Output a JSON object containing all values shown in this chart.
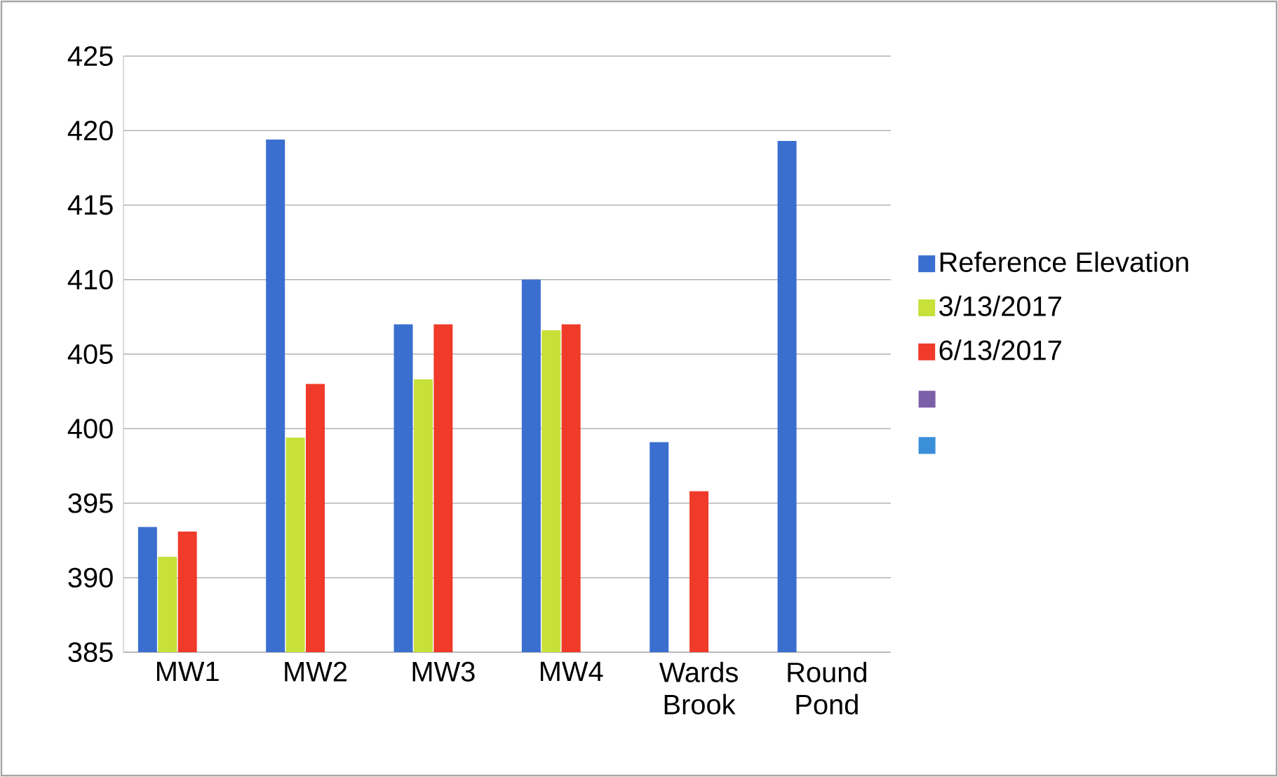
{
  "chart_data": {
    "type": "bar",
    "categories": [
      "MW1",
      "MW2",
      "MW3",
      "MW4",
      "Wards Brook",
      "Round Pond"
    ],
    "series": [
      {
        "name": "Reference Elevation",
        "color": "#3a6fd0",
        "values": [
          393.4,
          419.4,
          407.0,
          410.0,
          399.1,
          419.3
        ]
      },
      {
        "name": "3/13/2017",
        "color": "#c8e03a",
        "values": [
          391.4,
          399.4,
          403.3,
          406.6,
          null,
          null
        ]
      },
      {
        "name": "6/13/2017",
        "color": "#f03a2a",
        "values": [
          393.1,
          403.0,
          407.0,
          407.0,
          395.8,
          null
        ]
      },
      {
        "color": "#7b5fa8",
        "values": [
          null,
          null,
          null,
          null,
          null,
          null
        ]
      },
      {
        "color": "#3a8fd8",
        "values": [
          null,
          null,
          null,
          null,
          null,
          null
        ]
      }
    ],
    "ylim": [
      385,
      425
    ],
    "yticks": [
      385,
      390,
      395,
      400,
      405,
      410,
      415,
      420,
      425
    ],
    "grid": "y",
    "legend": "right"
  }
}
